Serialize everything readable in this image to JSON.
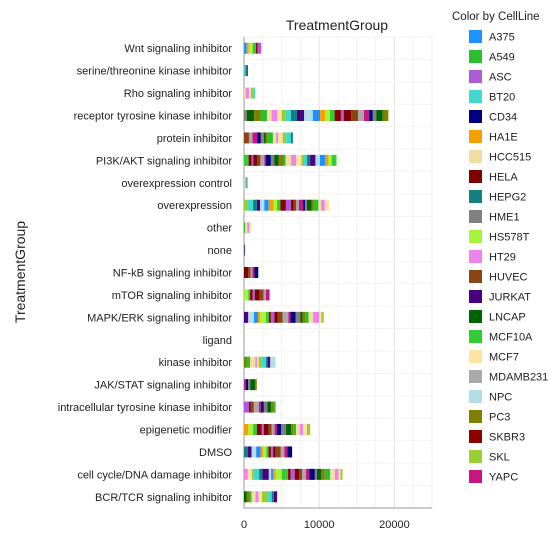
{
  "chart_data": {
    "type": "bar",
    "orientation": "horizontal",
    "stacked": true,
    "title": "TreatmentGroup",
    "ylabel": "TreatmentGroup",
    "xlabel": "",
    "xlim": [
      0,
      25000
    ],
    "xticks": [
      0,
      10000,
      20000
    ],
    "grid": true,
    "legend": {
      "title": "Color by CellLine",
      "placement": "right",
      "entries": [
        {
          "name": "A375",
          "color": "#1E90FF"
        },
        {
          "name": "A549",
          "color": "#2DBE2D"
        },
        {
          "name": "ASC",
          "color": "#B05AD8"
        },
        {
          "name": "BT20",
          "color": "#3FD9CF"
        },
        {
          "name": "CD34",
          "color": "#000080"
        },
        {
          "name": "HA1E",
          "color": "#F5A000"
        },
        {
          "name": "HCC515",
          "color": "#F0E0A0"
        },
        {
          "name": "HELA",
          "color": "#800000"
        },
        {
          "name": "HEPG2",
          "color": "#138080"
        },
        {
          "name": "HME1",
          "color": "#808080"
        },
        {
          "name": "HS578T",
          "color": "#A6F53A"
        },
        {
          "name": "HT29",
          "color": "#EE82EE"
        },
        {
          "name": "HUVEC",
          "color": "#8B4513"
        },
        {
          "name": "JURKAT",
          "color": "#4B0082"
        },
        {
          "name": "LNCAP",
          "color": "#006400"
        },
        {
          "name": "MCF10A",
          "color": "#32CD32"
        },
        {
          "name": "MCF7",
          "color": "#FFE4A0"
        },
        {
          "name": "MDAMB231",
          "color": "#A9A9A9"
        },
        {
          "name": "NPC",
          "color": "#B0E0E6"
        },
        {
          "name": "PC3",
          "color": "#808000"
        },
        {
          "name": "SKBR3",
          "color": "#8B0000"
        },
        {
          "name": "SKL",
          "color": "#9ACD32"
        },
        {
          "name": "YAPC",
          "color": "#C71585"
        }
      ]
    },
    "categories": [
      "Wnt signaling inhibitor",
      "serine/threonine kinase inhibitor",
      "Rho signaling inhibitor",
      "receptor tyrosine kinase inhibitor",
      "protein inhibitor",
      "PI3K/AKT signaling inhibitor",
      "overexpression control",
      "overexpression",
      "other",
      "none",
      "NF-kB signaling inhibitor",
      "mTOR signaling inhibitor",
      "MAPK/ERK signaling inhibitor",
      "ligand",
      "kinase inhibitor",
      "JAK/STAT signaling inhibitor",
      "intracellular tyrosine kinase inhibitor",
      "epigenetic modifier",
      "DMSO",
      "cell cycle/DNA damage inhibitor",
      "BCR/TCR signaling inhibitor"
    ],
    "totals": [
      2300,
      500,
      1500,
      19200,
      6500,
      12300,
      500,
      11300,
      900,
      150,
      1900,
      3400,
      10600,
      0,
      4200,
      1700,
      4200,
      8800,
      6400,
      13100,
      4400
    ]
  }
}
